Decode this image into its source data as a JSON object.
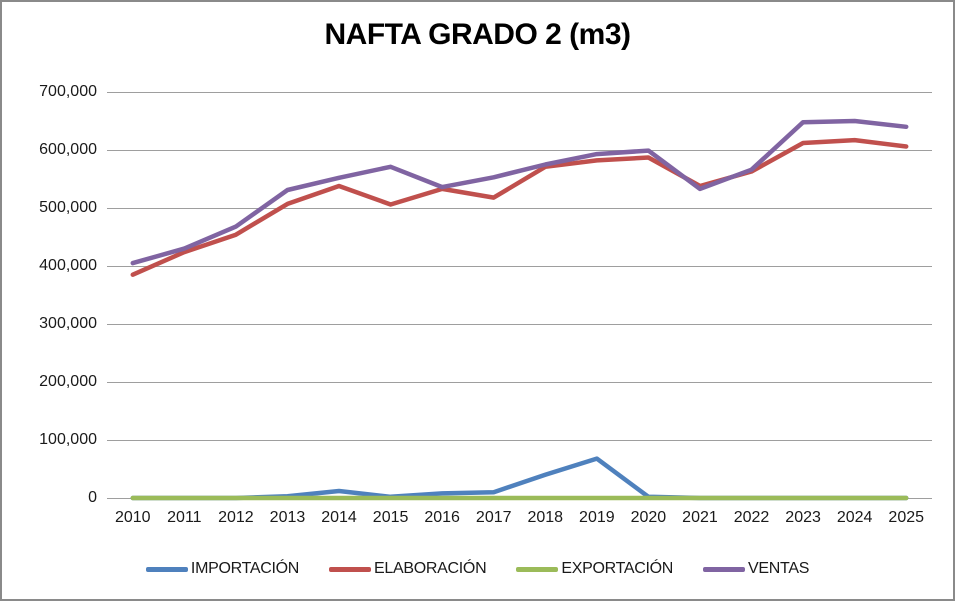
{
  "frame": {
    "border_color": "#8a8a8a",
    "background": "#ffffff"
  },
  "chart_data": {
    "type": "line",
    "title": "NAFTA GRADO 2 (m3)",
    "xlabel": "",
    "ylabel": "",
    "ylim": [
      0,
      700000
    ],
    "grid": true,
    "legend_position": "bottom",
    "gridline_color": "#9e9e9e",
    "axis_text_color": "#1a1a1a",
    "title_color": "#000000",
    "categories": [
      "2010",
      "2011",
      "2012",
      "2013",
      "2014",
      "2015",
      "2016",
      "2017",
      "2018",
      "2019",
      "2020",
      "2021",
      "2022",
      "2023",
      "2024",
      "2025"
    ],
    "yticks": [
      {
        "value": 700000,
        "label": "700,000"
      },
      {
        "value": 600000,
        "label": "600,000"
      },
      {
        "value": 500000,
        "label": "500,000"
      },
      {
        "value": 400000,
        "label": "400,000"
      },
      {
        "value": 300000,
        "label": "300,000"
      },
      {
        "value": 200000,
        "label": "200,000"
      },
      {
        "value": 100000,
        "label": "100,000"
      },
      {
        "value": 0,
        "label": "0"
      }
    ],
    "series": [
      {
        "name": "IMPORTACIÓN",
        "color": "#4F81BD",
        "values": [
          0,
          0,
          0,
          3000,
          12000,
          2000,
          8000,
          10000,
          40000,
          68000,
          2000,
          0,
          0,
          0,
          0,
          0
        ]
      },
      {
        "name": "ELABORACIÓN",
        "color": "#C0504D",
        "values": [
          385000,
          424000,
          454000,
          507000,
          538000,
          506000,
          533000,
          518000,
          571000,
          582000,
          587000,
          538000,
          563000,
          612000,
          617000,
          606000
        ]
      },
      {
        "name": "EXPORTACIÓN",
        "color": "#9BBB59",
        "values": [
          0,
          0,
          0,
          0,
          0,
          0,
          0,
          0,
          0,
          0,
          0,
          0,
          0,
          0,
          0,
          0
        ]
      },
      {
        "name": "VENTAS",
        "color": "#8064A2",
        "values": [
          405000,
          430000,
          468000,
          531000,
          552000,
          571000,
          536000,
          553000,
          575000,
          593000,
          599000,
          533000,
          566000,
          648000,
          650000,
          640000
        ]
      }
    ]
  }
}
